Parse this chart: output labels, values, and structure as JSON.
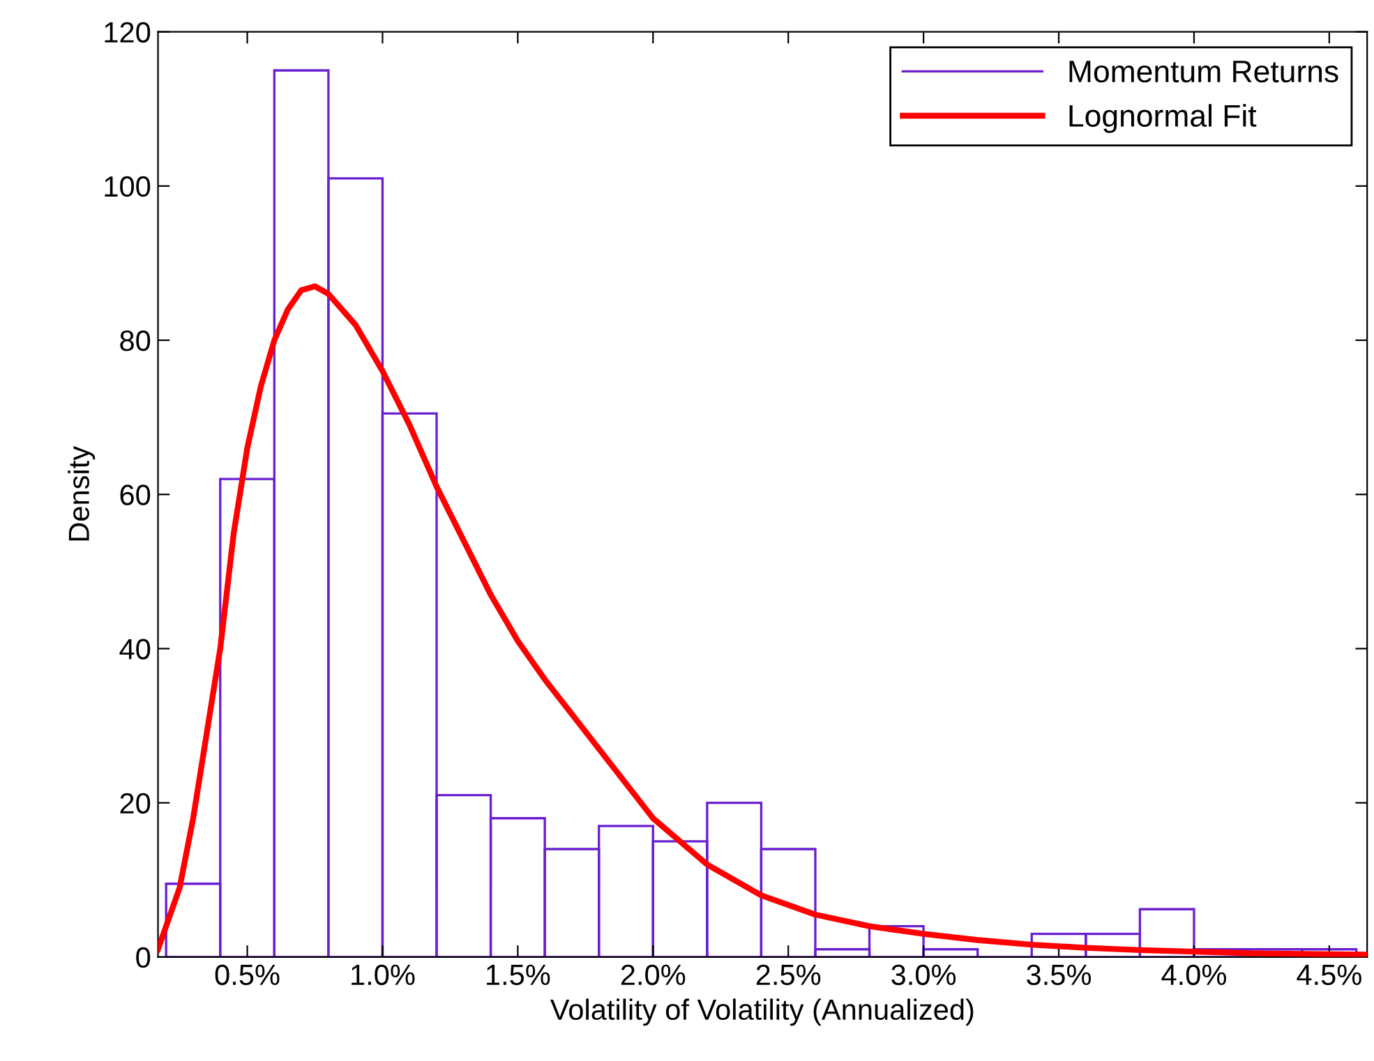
{
  "chart_data": {
    "type": "histogram",
    "xlabel": "Volatility of Volatility (Annualized)",
    "ylabel": "Density",
    "xlim": [
      0.17,
      4.64
    ],
    "ylim": [
      0,
      120
    ],
    "xticks": [
      {
        "value": 0.5,
        "label": "0.5%"
      },
      {
        "value": 1.0,
        "label": "1.0%"
      },
      {
        "value": 1.5,
        "label": "1.5%"
      },
      {
        "value": 2.0,
        "label": "2.0%"
      },
      {
        "value": 2.5,
        "label": "2.5%"
      },
      {
        "value": 3.0,
        "label": "3.0%"
      },
      {
        "value": 3.5,
        "label": "3.5%"
      },
      {
        "value": 4.0,
        "label": "4.0%"
      },
      {
        "value": 4.5,
        "label": "4.5%"
      }
    ],
    "yticks": [
      0,
      20,
      40,
      60,
      80,
      100,
      120
    ],
    "grid": false,
    "legend": "top right",
    "series": [
      {
        "name": "Momentum Returns",
        "color": "#6a1fd0",
        "bins": [
          0.2,
          0.4,
          0.6,
          0.8,
          1.0,
          1.2,
          1.4,
          1.6,
          1.8,
          2.0,
          2.2,
          2.4,
          2.6,
          2.8,
          3.0,
          3.2,
          3.4,
          3.6,
          3.8,
          4.0,
          4.2,
          4.4,
          4.6
        ],
        "values": [
          9.5,
          62,
          115,
          101,
          70.5,
          21,
          18,
          14,
          17,
          15,
          20,
          14,
          1,
          4,
          1,
          0,
          3,
          3,
          6.2,
          1,
          1,
          1
        ]
      },
      {
        "type": "line",
        "name": "Lognormal Fit",
        "color": "#ff0000",
        "x": [
          0.17,
          0.25,
          0.3,
          0.35,
          0.4,
          0.45,
          0.5,
          0.55,
          0.6,
          0.65,
          0.7,
          0.75,
          0.8,
          0.9,
          1.0,
          1.1,
          1.2,
          1.3,
          1.4,
          1.5,
          1.6,
          1.8,
          2.0,
          2.2,
          2.4,
          2.6,
          2.8,
          3.0,
          3.2,
          3.4,
          3.6,
          3.8,
          4.0,
          4.2,
          4.4,
          4.64
        ],
        "values": [
          1,
          9,
          18,
          29,
          40,
          55,
          66,
          74,
          80,
          84,
          86.5,
          87,
          86,
          82,
          76,
          69,
          61,
          54,
          47,
          41,
          36,
          27,
          18,
          12,
          8,
          5.5,
          4,
          3,
          2.2,
          1.6,
          1.2,
          0.9,
          0.7,
          0.5,
          0.4,
          0.3
        ]
      }
    ]
  }
}
